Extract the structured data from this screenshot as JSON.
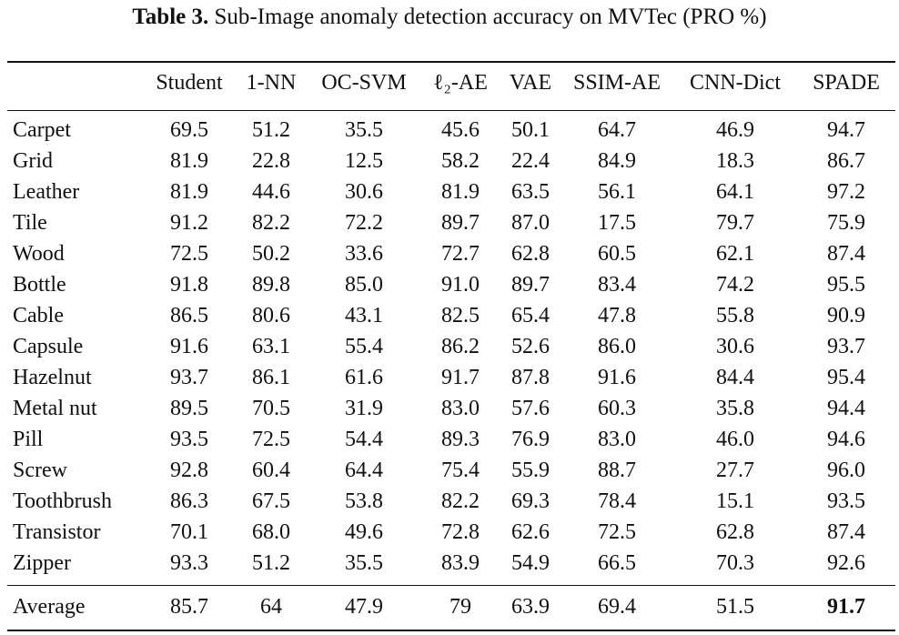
{
  "caption": {
    "label": "Table 3.",
    "text": "Sub-Image anomaly detection accuracy on MVTec (PRO %)"
  },
  "table": {
    "columns": [
      "",
      "Student",
      "1-NN",
      "OC-SVM",
      "ℓ₂-AE",
      "VAE",
      "SSIM-AE",
      "CNN-Dict",
      "SPADE"
    ],
    "rows": [
      {
        "label": "Carpet",
        "values": [
          "69.5",
          "51.2",
          "35.5",
          "45.6",
          "50.1",
          "64.7",
          "46.9",
          "94.7"
        ]
      },
      {
        "label": "Grid",
        "values": [
          "81.9",
          "22.8",
          "12.5",
          "58.2",
          "22.4",
          "84.9",
          "18.3",
          "86.7"
        ]
      },
      {
        "label": "Leather",
        "values": [
          "81.9",
          "44.6",
          "30.6",
          "81.9",
          "63.5",
          "56.1",
          "64.1",
          "97.2"
        ]
      },
      {
        "label": "Tile",
        "values": [
          "91.2",
          "82.2",
          "72.2",
          "89.7",
          "87.0",
          "17.5",
          "79.7",
          "75.9"
        ]
      },
      {
        "label": "Wood",
        "values": [
          "72.5",
          "50.2",
          "33.6",
          "72.7",
          "62.8",
          "60.5",
          "62.1",
          "87.4"
        ]
      },
      {
        "label": "Bottle",
        "values": [
          "91.8",
          "89.8",
          "85.0",
          "91.0",
          "89.7",
          "83.4",
          "74.2",
          "95.5"
        ]
      },
      {
        "label": "Cable",
        "values": [
          "86.5",
          "80.6",
          "43.1",
          "82.5",
          "65.4",
          "47.8",
          "55.8",
          "90.9"
        ]
      },
      {
        "label": "Capsule",
        "values": [
          "91.6",
          "63.1",
          "55.4",
          "86.2",
          "52.6",
          "86.0",
          "30.6",
          "93.7"
        ]
      },
      {
        "label": "Hazelnut",
        "values": [
          "93.7",
          "86.1",
          "61.6",
          "91.7",
          "87.8",
          "91.6",
          "84.4",
          "95.4"
        ]
      },
      {
        "label": "Metal nut",
        "values": [
          "89.5",
          "70.5",
          "31.9",
          "83.0",
          "57.6",
          "60.3",
          "35.8",
          "94.4"
        ]
      },
      {
        "label": "Pill",
        "values": [
          "93.5",
          "72.5",
          "54.4",
          "89.3",
          "76.9",
          "83.0",
          "46.0",
          "94.6"
        ]
      },
      {
        "label": "Screw",
        "values": [
          "92.8",
          "60.4",
          "64.4",
          "75.4",
          "55.9",
          "88.7",
          "27.7",
          "96.0"
        ]
      },
      {
        "label": "Toothbrush",
        "values": [
          "86.3",
          "67.5",
          "53.8",
          "82.2",
          "69.3",
          "78.4",
          "15.1",
          "93.5"
        ]
      },
      {
        "label": "Transistor",
        "values": [
          "70.1",
          "68.0",
          "49.6",
          "72.8",
          "62.6",
          "72.5",
          "62.8",
          "87.4"
        ]
      },
      {
        "label": "Zipper",
        "values": [
          "93.3",
          "51.2",
          "35.5",
          "83.9",
          "54.9",
          "66.5",
          "70.3",
          "92.6"
        ]
      }
    ],
    "average": {
      "label": "Average",
      "values": [
        "85.7",
        "64",
        "47.9",
        "79",
        "63.9",
        "69.4",
        "51.5",
        "91.7"
      ],
      "bold_column": "SPADE"
    }
  }
}
